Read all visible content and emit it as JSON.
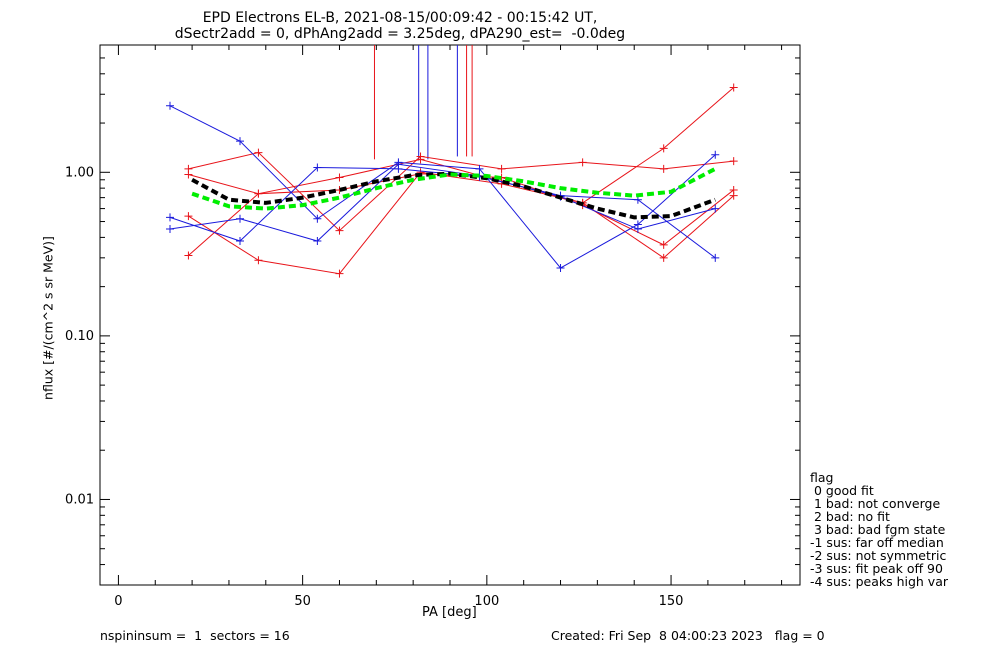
{
  "title_line1": "EPD Electrons EL-B, 2021-08-15/00:09:42 - 00:15:42 UT,",
  "title_line2": "dSectr2add = 0, dPhAng2add = 3.25deg, dPA290_est=  -0.0deg",
  "footer_left": "nspininsum =  1  sectors = 16",
  "footer_right": "Created: Fri Sep  8 04:00:23 2023   flag = 0",
  "legend": {
    "title": "flag",
    "items": [
      " 0 good fit",
      " 1 bad: not converge",
      " 2 bad: no fit",
      " 3 bad: bad fgm state",
      "-1 sus: far off median",
      "-2 sus: not symmetric",
      "-3 sus: fit peak off 90",
      "-4 sus: peaks high var"
    ]
  },
  "colors": {
    "red": "#e8141a",
    "blue": "#1a1adc",
    "black": "#000000",
    "green": "#00ee00"
  },
  "chart_data": {
    "type": "line",
    "xlabel": "PA [deg]",
    "ylabel": "nflux [#/(cm^2 s sr MeV)]",
    "xlim": [
      -5,
      185
    ],
    "ylim": [
      0.003,
      6
    ],
    "yscale": "log",
    "xticks": [
      0,
      50,
      100,
      150
    ],
    "yticks": [
      0.01,
      0.1,
      1.0
    ],
    "ytick_labels": [
      "0.01",
      "0.10",
      "1.00"
    ],
    "series": [
      {
        "color": "red",
        "marker": "+",
        "x": [
          19,
          38,
          60,
          82,
          104,
          126,
          148,
          167
        ],
        "y": [
          1.05,
          1.32,
          0.44,
          1.25,
          1.05,
          1.15,
          1.05,
          1.17
        ]
      },
      {
        "color": "red",
        "marker": "+",
        "x": [
          19,
          38,
          60,
          82,
          104,
          126,
          148,
          167
        ],
        "y": [
          0.31,
          0.74,
          0.93,
          1.2,
          0.88,
          0.65,
          1.4,
          3.3
        ]
      },
      {
        "color": "red",
        "marker": "+",
        "x": [
          19,
          38,
          60,
          82,
          104,
          126,
          148,
          167
        ],
        "y": [
          0.54,
          0.29,
          0.24,
          1.0,
          0.85,
          0.65,
          0.3,
          0.72
        ]
      },
      {
        "color": "red",
        "marker": "+",
        "x": [
          19,
          38,
          60,
          82,
          104,
          126,
          148,
          167
        ],
        "y": [
          0.97,
          0.74,
          0.78,
          0.98,
          0.93,
          0.63,
          0.36,
          0.78
        ]
      },
      {
        "color": "blue",
        "marker": "+",
        "x": [
          14,
          33,
          54,
          76,
          98,
          120,
          141,
          162
        ],
        "y": [
          2.55,
          1.55,
          0.52,
          1.15,
          1.05,
          0.26,
          0.48,
          1.28
        ]
      },
      {
        "color": "blue",
        "marker": "+",
        "x": [
          14,
          33,
          54,
          76,
          98,
          120,
          141,
          162
        ],
        "y": [
          0.53,
          0.38,
          1.07,
          1.05,
          0.94,
          0.72,
          0.68,
          0.3
        ]
      },
      {
        "color": "blue",
        "marker": "+",
        "x": [
          14,
          33,
          54,
          76,
          98,
          120,
          141,
          162
        ],
        "y": [
          0.45,
          0.52,
          0.38,
          1.12,
          0.95,
          0.71,
          0.45,
          0.6
        ]
      },
      {
        "color": "black",
        "style": "dashed-thick",
        "x": [
          20,
          30,
          40,
          50,
          60,
          70,
          80,
          90,
          100,
          110,
          120,
          130,
          140,
          150,
          162
        ],
        "y": [
          0.9,
          0.68,
          0.65,
          0.7,
          0.78,
          0.88,
          0.96,
          0.98,
          0.92,
          0.82,
          0.7,
          0.6,
          0.53,
          0.54,
          0.68
        ]
      },
      {
        "color": "green",
        "style": "dashed-thick",
        "x": [
          20,
          30,
          40,
          50,
          60,
          70,
          80,
          90,
          100,
          110,
          120,
          130,
          140,
          150,
          162
        ],
        "y": [
          0.74,
          0.62,
          0.6,
          0.63,
          0.7,
          0.8,
          0.9,
          0.97,
          0.95,
          0.88,
          0.8,
          0.75,
          0.72,
          0.76,
          1.05
        ]
      }
    ],
    "vertical_lines": [
      {
        "color": "red",
        "x": 69.5,
        "y_bottom": 1.2
      },
      {
        "color": "blue",
        "x": 81.5,
        "y_bottom": 1.18
      },
      {
        "color": "blue",
        "x": 84.0,
        "y_bottom": 1.2
      },
      {
        "color": "blue",
        "x": 92.0,
        "y_bottom": 1.25
      },
      {
        "color": "red",
        "x": 94.5,
        "y_bottom": 1.25
      },
      {
        "color": "red",
        "x": 96.0,
        "y_bottom": 1.25
      }
    ]
  }
}
